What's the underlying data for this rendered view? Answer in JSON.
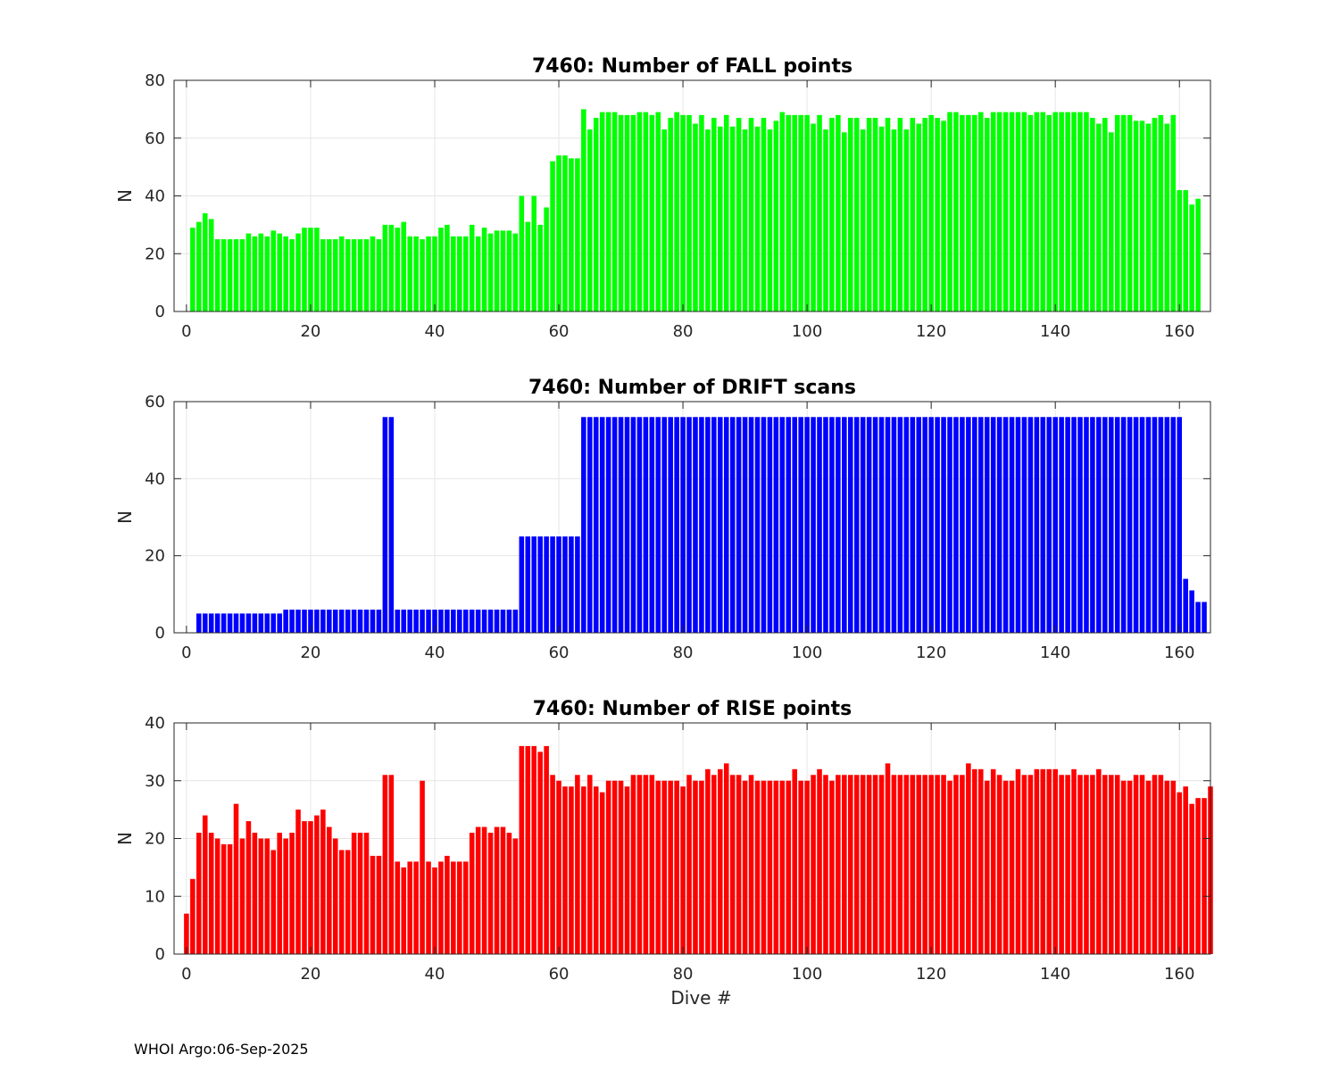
{
  "footer": "WHOI Argo:06-Sep-2025",
  "chart_data": [
    {
      "type": "bar",
      "title": "7460: Number of FALL points",
      "xlabel": "",
      "ylabel": "N",
      "color": "#00ff00",
      "xlim": [
        -2,
        165
      ],
      "ylim": [
        0,
        80
      ],
      "xticks": [
        0,
        20,
        40,
        60,
        80,
        100,
        120,
        140,
        160
      ],
      "yticks": [
        0,
        20,
        40,
        60,
        80
      ],
      "grid": true,
      "x_start": 1,
      "values": [
        29,
        31,
        34,
        32,
        25,
        25,
        25,
        25,
        25,
        27,
        26,
        27,
        26,
        28,
        27,
        26,
        25,
        27,
        29,
        29,
        29,
        25,
        25,
        25,
        26,
        25,
        25,
        25,
        25,
        26,
        25,
        30,
        30,
        29,
        31,
        26,
        26,
        25,
        26,
        26,
        29,
        30,
        26,
        26,
        26,
        30,
        26,
        29,
        27,
        28,
        28,
        28,
        27,
        40,
        31,
        40,
        30,
        36,
        52,
        54,
        54,
        53,
        53,
        70,
        63,
        67,
        69,
        69,
        69,
        68,
        68,
        68,
        69,
        69,
        68,
        69,
        63,
        67,
        69,
        68,
        68,
        65,
        68,
        63,
        67,
        64,
        68,
        64,
        67,
        63,
        67,
        64,
        67,
        63,
        66,
        69,
        68,
        68,
        68,
        68,
        65,
        68,
        63,
        67,
        68,
        62,
        67,
        67,
        63,
        67,
        67,
        64,
        67,
        63,
        67,
        63,
        67,
        65,
        67,
        68,
        67,
        66,
        69,
        69,
        68,
        68,
        68,
        69,
        67,
        69,
        69,
        69,
        69,
        69,
        69,
        68,
        69,
        69,
        68,
        69,
        69,
        69,
        69,
        69,
        69,
        67,
        65,
        67,
        62,
        68,
        68,
        68,
        66,
        66,
        65,
        67,
        68,
        65,
        68,
        42,
        42,
        37,
        39
      ]
    },
    {
      "type": "bar",
      "title": "7460: Number of DRIFT scans",
      "xlabel": "",
      "ylabel": "N",
      "color": "#0000ff",
      "xlim": [
        -2,
        165
      ],
      "ylim": [
        0,
        60
      ],
      "xticks": [
        0,
        20,
        40,
        60,
        80,
        100,
        120,
        140,
        160
      ],
      "yticks": [
        0,
        20,
        40,
        60
      ],
      "grid": true,
      "x_start": 2,
      "values": [
        5,
        5,
        5,
        5,
        5,
        5,
        5,
        5,
        5,
        5,
        5,
        5,
        5,
        5,
        6,
        6,
        6,
        6,
        6,
        6,
        6,
        6,
        6,
        6,
        6,
        6,
        6,
        6,
        6,
        6,
        56,
        56,
        6,
        6,
        6,
        6,
        6,
        6,
        6,
        6,
        6,
        6,
        6,
        6,
        6,
        6,
        6,
        6,
        6,
        6,
        6,
        6,
        25,
        25,
        25,
        25,
        25,
        25,
        25,
        25,
        25,
        25,
        56,
        56,
        56,
        56,
        56,
        56,
        56,
        56,
        56,
        56,
        56,
        56,
        56,
        56,
        56,
        56,
        56,
        56,
        56,
        56,
        56,
        56,
        56,
        56,
        56,
        56,
        56,
        56,
        56,
        56,
        56,
        56,
        56,
        56,
        56,
        56,
        56,
        56,
        56,
        56,
        56,
        56,
        56,
        56,
        56,
        56,
        56,
        56,
        56,
        56,
        56,
        56,
        56,
        56,
        56,
        56,
        56,
        56,
        56,
        56,
        56,
        56,
        56,
        56,
        56,
        56,
        56,
        56,
        56,
        56,
        56,
        56,
        56,
        56,
        56,
        56,
        56,
        56,
        56,
        56,
        56,
        56,
        56,
        56,
        56,
        56,
        56,
        56,
        56,
        56,
        56,
        56,
        56,
        56,
        56,
        56,
        56,
        14,
        11,
        8,
        8
      ]
    },
    {
      "type": "bar",
      "title": "7460: Number of RISE points",
      "xlabel": "Dive #",
      "ylabel": "N",
      "color": "#ff0000",
      "xlim": [
        -2,
        165
      ],
      "ylim": [
        0,
        40
      ],
      "xticks": [
        0,
        20,
        40,
        60,
        80,
        100,
        120,
        140,
        160
      ],
      "yticks": [
        0,
        10,
        20,
        30,
        40
      ],
      "grid": true,
      "x_start": 0,
      "values": [
        7,
        13,
        21,
        24,
        21,
        20,
        19,
        19,
        26,
        20,
        23,
        21,
        20,
        20,
        18,
        21,
        20,
        21,
        25,
        23,
        23,
        24,
        25,
        22,
        20,
        18,
        18,
        21,
        21,
        21,
        17,
        17,
        31,
        31,
        16,
        15,
        16,
        16,
        30,
        16,
        15,
        16,
        17,
        16,
        16,
        16,
        21,
        22,
        22,
        21,
        22,
        22,
        21,
        20,
        36,
        36,
        36,
        35,
        36,
        31,
        30,
        29,
        29,
        31,
        29,
        31,
        29,
        28,
        30,
        30,
        30,
        29,
        31,
        31,
        31,
        31,
        30,
        30,
        30,
        30,
        29,
        31,
        30,
        30,
        32,
        31,
        32,
        33,
        31,
        31,
        30,
        31,
        30,
        30,
        30,
        30,
        30,
        30,
        32,
        30,
        30,
        31,
        32,
        31,
        30,
        31,
        31,
        31,
        31,
        31,
        31,
        31,
        31,
        33,
        31,
        31,
        31,
        31,
        31,
        31,
        31,
        31,
        31,
        30,
        31,
        31,
        33,
        32,
        32,
        30,
        32,
        31,
        30,
        30,
        32,
        31,
        31,
        32,
        32,
        32,
        32,
        31,
        31,
        32,
        31,
        31,
        31,
        32,
        31,
        31,
        31,
        30,
        30,
        31,
        31,
        30,
        31,
        31,
        30,
        30,
        28,
        29,
        26,
        27,
        27,
        29
      ]
    }
  ]
}
